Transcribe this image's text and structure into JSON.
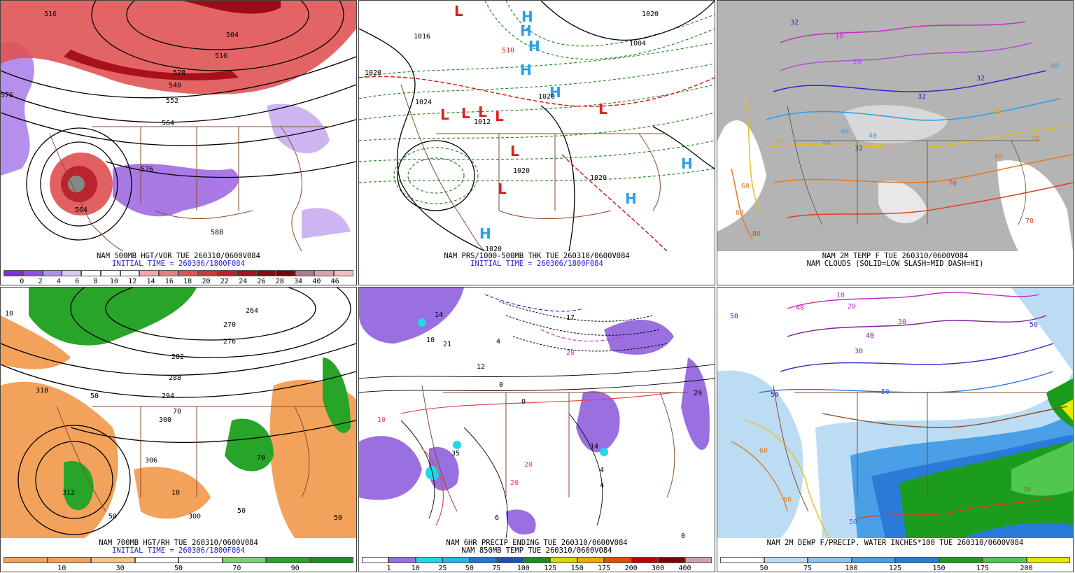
{
  "panels": [
    {
      "id": "p1",
      "caption1": "NAM 500MB HGT/VOR TUE 260310/0600V084",
      "caption2": "INITIAL TIME = 260306/1800F084",
      "caption2_color": "#2222cc",
      "scale_colors": [
        "#7a2fd6",
        "#9150e0",
        "#b28ee8",
        "#d8c8f2",
        "#ffffff",
        "#ffffff",
        "#ffffff",
        "#f3a6a6",
        "#ec7b7b",
        "#e35252",
        "#d43838",
        "#c21f2a",
        "#a8101c",
        "#8a0a12",
        "#6d0a10",
        "#b07b86",
        "#d9a0ac",
        "#f2bcc6"
      ],
      "scale_labels": [
        "0",
        "2",
        "4",
        "6",
        "8",
        "10",
        "12",
        "14",
        "16",
        "18",
        "20",
        "22",
        "24",
        "26",
        "28",
        "34",
        "40",
        "46"
      ],
      "contour_labels": [
        "516",
        "504",
        "516",
        "528",
        "540",
        "552",
        "564",
        "576",
        "564",
        "588",
        "576"
      ]
    },
    {
      "id": "p2",
      "caption1": "NAM PRS/1000-500MB THK TUE 260310/0600V084",
      "caption2": "INITIAL TIME = 260306/1800F084",
      "caption2_color": "#2222cc",
      "high_symbol": "H",
      "low_symbol": "L",
      "high_color": "#2aa0e6",
      "low_color": "#e02020",
      "contour_labels": [
        "1016",
        "1020",
        "1024",
        "1020",
        "1012",
        "1020",
        "1004",
        "1020",
        "1020",
        "1020",
        "510"
      ]
    },
    {
      "id": "p3",
      "caption1": "NAM 2M TEMP F TUE 260310/0600V084",
      "caption2": "NAM CLOUDS (SOLID=LOW SLASH=MID DASH=HI)",
      "caption2_color": "#000000",
      "contour_labels": [
        "32",
        "32",
        "40",
        "32",
        "40",
        "40",
        "32",
        "60",
        "50",
        "60",
        "70",
        "60",
        "70",
        "80",
        "50",
        "60",
        "70",
        "40",
        "10",
        "20"
      ]
    },
    {
      "id": "p4",
      "caption1": "NAM 700MB HGT/RH TUE 260310/0600V084",
      "caption2": "INITIAL TIME = 260306/1800F084",
      "caption2_color": "#2222cc",
      "scale_colors": [
        "#f2a25a",
        "#f2a25a",
        "#f7c48c",
        "#ffffff",
        "#ffffff",
        "#7fd17f",
        "#28a428",
        "#1e8c1e"
      ],
      "scale_labels": [
        "10",
        "30",
        "50",
        "70",
        "90"
      ],
      "contour_labels": [
        "264",
        "270",
        "276",
        "282",
        "288",
        "294",
        "300",
        "306",
        "312",
        "300",
        "318",
        "50",
        "50",
        "10",
        "50",
        "70",
        "70",
        "50",
        "10"
      ]
    },
    {
      "id": "p5",
      "caption1": "NAM 6HR PRECIP ENDING TUE 260310/0600V084",
      "caption2": "NAM 850MB TEMP TUE 260310/0600V084",
      "caption2_color": "#000000",
      "scale_colors": [
        "#ffffff",
        "#9a6fe0",
        "#22d8e8",
        "#22b8e8",
        "#1e78d8",
        "#1e50b8",
        "#1e8c1e",
        "#d8d800",
        "#f0a800",
        "#e05000",
        "#c00000",
        "#800000",
        "#d0a0b0"
      ],
      "scale_labels": [
        "1",
        "10",
        "25",
        "50",
        "75",
        "100",
        "125",
        "150",
        "175",
        "200",
        "300",
        "400"
      ],
      "contour_labels": [
        "14",
        "21",
        "4",
        "12",
        "10",
        "0",
        "0",
        "10",
        "20",
        "14",
        "17",
        "4",
        "20",
        "6",
        "4",
        "20",
        "0",
        "29",
        "35"
      ]
    },
    {
      "id": "p6",
      "caption1": "NAM 2M DEWP F/PRECIP. WATER INCHES*100 TUE 260310/0600V084",
      "caption2": "",
      "caption2_color": "#000000",
      "scale_colors": [
        "#ffffff",
        "#bcdcf4",
        "#8cc4ee",
        "#4aa0e6",
        "#2a7ad8",
        "#1c9c1c",
        "#50c850",
        "#e8e800"
      ],
      "scale_labels": [
        "50",
        "75",
        "100",
        "125",
        "150",
        "175",
        "200"
      ],
      "contour_labels": [
        "50",
        "40",
        "50",
        "60",
        "30",
        "50",
        "40",
        "30",
        "20",
        "10",
        "60",
        "50",
        "60",
        "50",
        "70"
      ]
    }
  ]
}
